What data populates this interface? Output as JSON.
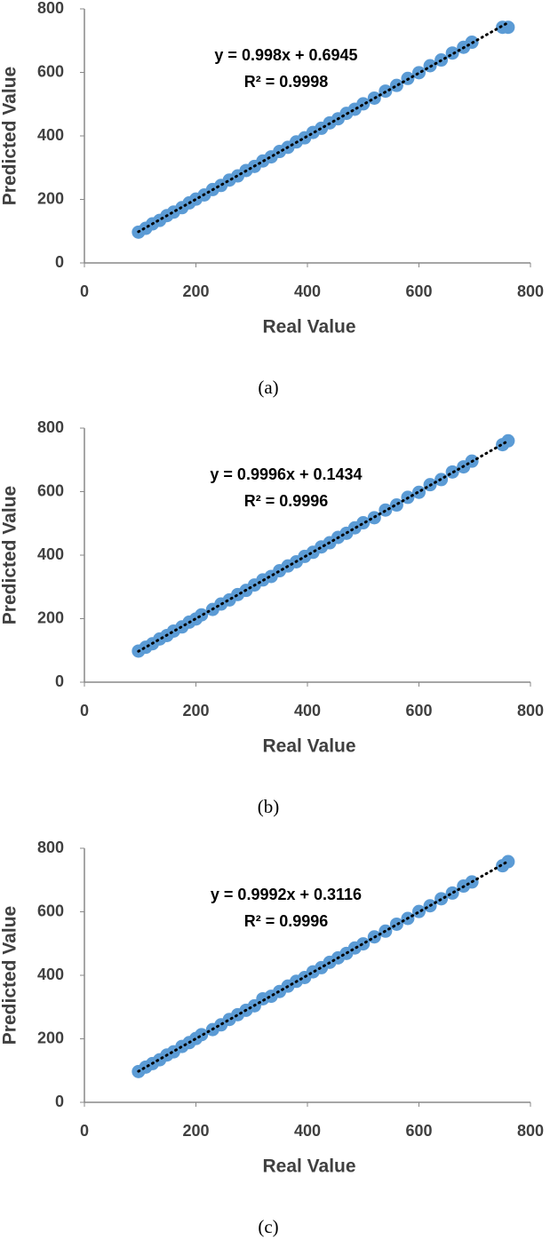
{
  "chart_data": [
    {
      "type": "scatter",
      "caption": "(a)",
      "x_label": "Real Value",
      "y_label": "Predicted Value",
      "annotations": [
        "y = 0.998x + 0.6945",
        "R² = 0.9998"
      ],
      "color": "#5b9bd5",
      "trendline": true,
      "xlim": [
        0,
        800
      ],
      "ylim": [
        0,
        800
      ],
      "xticks": [
        0,
        200,
        400,
        600,
        800
      ],
      "yticks": [
        0,
        200,
        400,
        600,
        800
      ],
      "x": [
        97,
        110,
        122,
        135,
        148,
        160,
        175,
        188,
        200,
        215,
        230,
        245,
        260,
        275,
        290,
        305,
        320,
        335,
        350,
        365,
        380,
        395,
        410,
        425,
        440,
        455,
        470,
        485,
        500,
        520,
        540,
        560,
        580,
        600,
        620,
        640,
        660,
        680,
        695,
        750,
        760
      ],
      "y": [
        97,
        109,
        123,
        134,
        149,
        160,
        174,
        189,
        201,
        214,
        231,
        244,
        261,
        274,
        291,
        304,
        321,
        334,
        351,
        364,
        381,
        394,
        411,
        424,
        441,
        454,
        471,
        484,
        501,
        519,
        541,
        559,
        581,
        599,
        621,
        639,
        661,
        679,
        695,
        742,
        742
      ]
    },
    {
      "type": "scatter",
      "caption": "(b)",
      "x_label": "Real Value",
      "y_label": "Predicted Value",
      "annotations": [
        "y = 0.9996x + 0.1434",
        "R² = 0.9996"
      ],
      "color": "#5b9bd5",
      "trendline": true,
      "xlim": [
        0,
        800
      ],
      "ylim": [
        0,
        800
      ],
      "xticks": [
        0,
        200,
        400,
        600,
        800
      ],
      "yticks": [
        0,
        200,
        400,
        600,
        800
      ],
      "x": [
        97,
        110,
        122,
        135,
        148,
        160,
        175,
        188,
        200,
        210,
        230,
        245,
        260,
        275,
        290,
        305,
        320,
        335,
        350,
        365,
        380,
        395,
        410,
        425,
        440,
        455,
        470,
        485,
        500,
        520,
        540,
        560,
        580,
        600,
        620,
        640,
        660,
        680,
        695,
        750,
        760
      ],
      "y": [
        98,
        110,
        121,
        136,
        147,
        161,
        174,
        189,
        199,
        212,
        229,
        246,
        259,
        276,
        289,
        306,
        322,
        333,
        351,
        366,
        379,
        396,
        409,
        426,
        439,
        456,
        469,
        486,
        502,
        518,
        542,
        558,
        582,
        598,
        622,
        638,
        662,
        678,
        696,
        748,
        760
      ]
    },
    {
      "type": "scatter",
      "caption": "(c)",
      "x_label": "Real Value",
      "y_label": "Predicted Value",
      "annotations": [
        "y = 0.9992x + 0.3116",
        "R² = 0.9996"
      ],
      "color": "#5b9bd5",
      "trendline": true,
      "xlim": [
        0,
        800
      ],
      "ylim": [
        0,
        800
      ],
      "xticks": [
        0,
        200,
        400,
        600,
        800
      ],
      "yticks": [
        0,
        200,
        400,
        600,
        800
      ],
      "x": [
        97,
        110,
        122,
        135,
        148,
        160,
        175,
        188,
        200,
        210,
        230,
        245,
        260,
        275,
        290,
        305,
        320,
        335,
        350,
        365,
        380,
        395,
        410,
        425,
        440,
        455,
        470,
        485,
        500,
        520,
        540,
        560,
        580,
        600,
        620,
        640,
        660,
        680,
        695,
        750,
        760
      ],
      "y": [
        97,
        111,
        122,
        134,
        149,
        159,
        176,
        188,
        201,
        213,
        229,
        244,
        261,
        276,
        290,
        304,
        326,
        334,
        349,
        366,
        381,
        393,
        411,
        424,
        441,
        455,
        469,
        486,
        499,
        521,
        539,
        561,
        579,
        601,
        619,
        641,
        659,
        681,
        694,
        745,
        758
      ]
    }
  ]
}
